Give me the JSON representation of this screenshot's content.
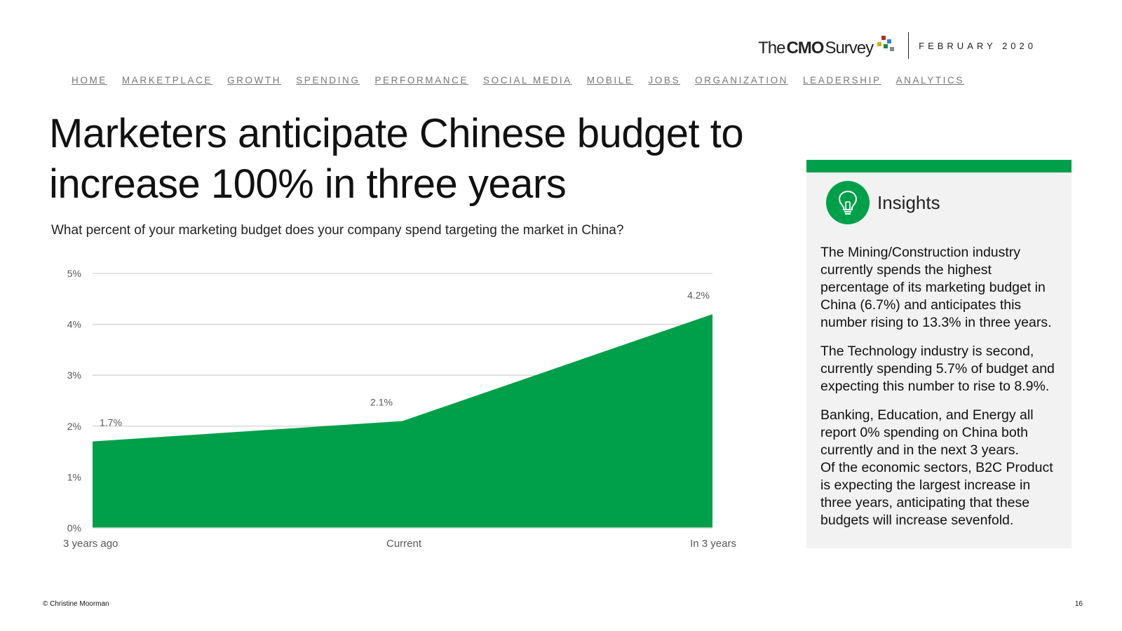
{
  "brand": {
    "logo_the": "The",
    "logo_cmo": "CMO",
    "logo_survey": "Survey",
    "date": "FEBRUARY 2020",
    "dot_colors": [
      "#a93226",
      "#2e86c1",
      "#d4ac0d",
      "#1e8449",
      "#7f8c8d"
    ]
  },
  "nav": [
    "HOME",
    "MARKETPLACE",
    "GROWTH",
    "SPENDING",
    "PERFORMANCE",
    "SOCIAL MEDIA",
    "MOBILE",
    "JOBS",
    "ORGANIZATION",
    "LEADERSHIP",
    "ANALYTICS"
  ],
  "title": "Marketers anticipate Chinese budget to increase 100% in three years",
  "subtitle": "What percent of your marketing budget does your company spend targeting the market in China?",
  "chart_data": {
    "type": "area",
    "categories": [
      "3 years ago",
      "Current",
      "In 3 years"
    ],
    "values": [
      1.7,
      2.1,
      4.2
    ],
    "data_labels": [
      "1.7%",
      "2.1%",
      "4.2%"
    ],
    "y_ticks": [
      "0%",
      "1%",
      "2%",
      "3%",
      "4%",
      "5%"
    ],
    "ylim": [
      0,
      5
    ],
    "grid": true,
    "color": "#00a04a",
    "title": "",
    "xlabel": "",
    "ylabel": ""
  },
  "insights": {
    "title": "Insights",
    "paragraphs": [
      "The Mining/Construction industry currently spends the highest percentage of its marketing budget in China (6.7%) and anticipates this number rising to 13.3% in three years.",
      "The Technology industry is second, currently spending 5.7% of budget and expecting this number to rise to 8.9%.",
      "Banking, Education, and Energy all report 0% spending on China both currently and in the next 3 years.",
      "Of the economic sectors, B2C Product is expecting the largest increase in three years, anticipating that these budgets will increase sevenfold."
    ],
    "accent": "#00a04a"
  },
  "footer": {
    "copyright": "© Christine Moorman",
    "page": "16"
  }
}
